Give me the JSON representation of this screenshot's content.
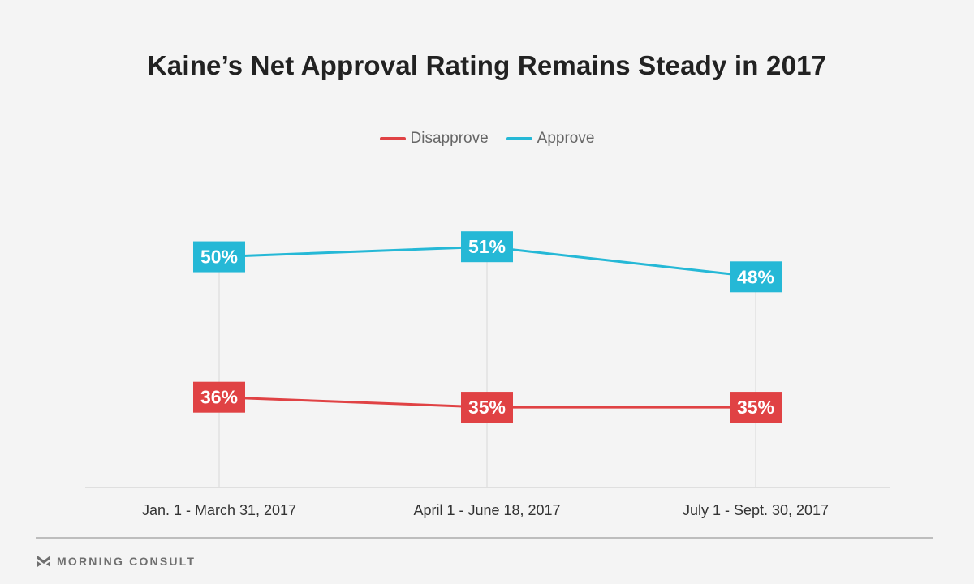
{
  "chart_data": {
    "type": "line",
    "title": "Kaine’s Net Approval Rating Remains Steady in 2017",
    "categories": [
      "Jan. 1 - March 31, 2017",
      "April 1 - June 18, 2017",
      "July 1 - Sept. 30, 2017"
    ],
    "series": [
      {
        "name": "Disapprove",
        "values": [
          36,
          35,
          35
        ],
        "labels": [
          "36%",
          "35%",
          "35%"
        ],
        "color": "#e04244"
      },
      {
        "name": "Approve",
        "values": [
          50,
          51,
          48
        ],
        "labels": [
          "50%",
          "51%",
          "48%"
        ],
        "color": "#25b8d6"
      }
    ],
    "ylim": [
      27,
      57
    ],
    "legend": "top-center",
    "grid": "vertical"
  },
  "brand": {
    "name": "MORNING CONSULT",
    "icon": "morning-consult-m-icon"
  },
  "colors": {
    "background": "#f4f4f4",
    "axis": "#d8d8d8",
    "tick_text": "#333333"
  }
}
